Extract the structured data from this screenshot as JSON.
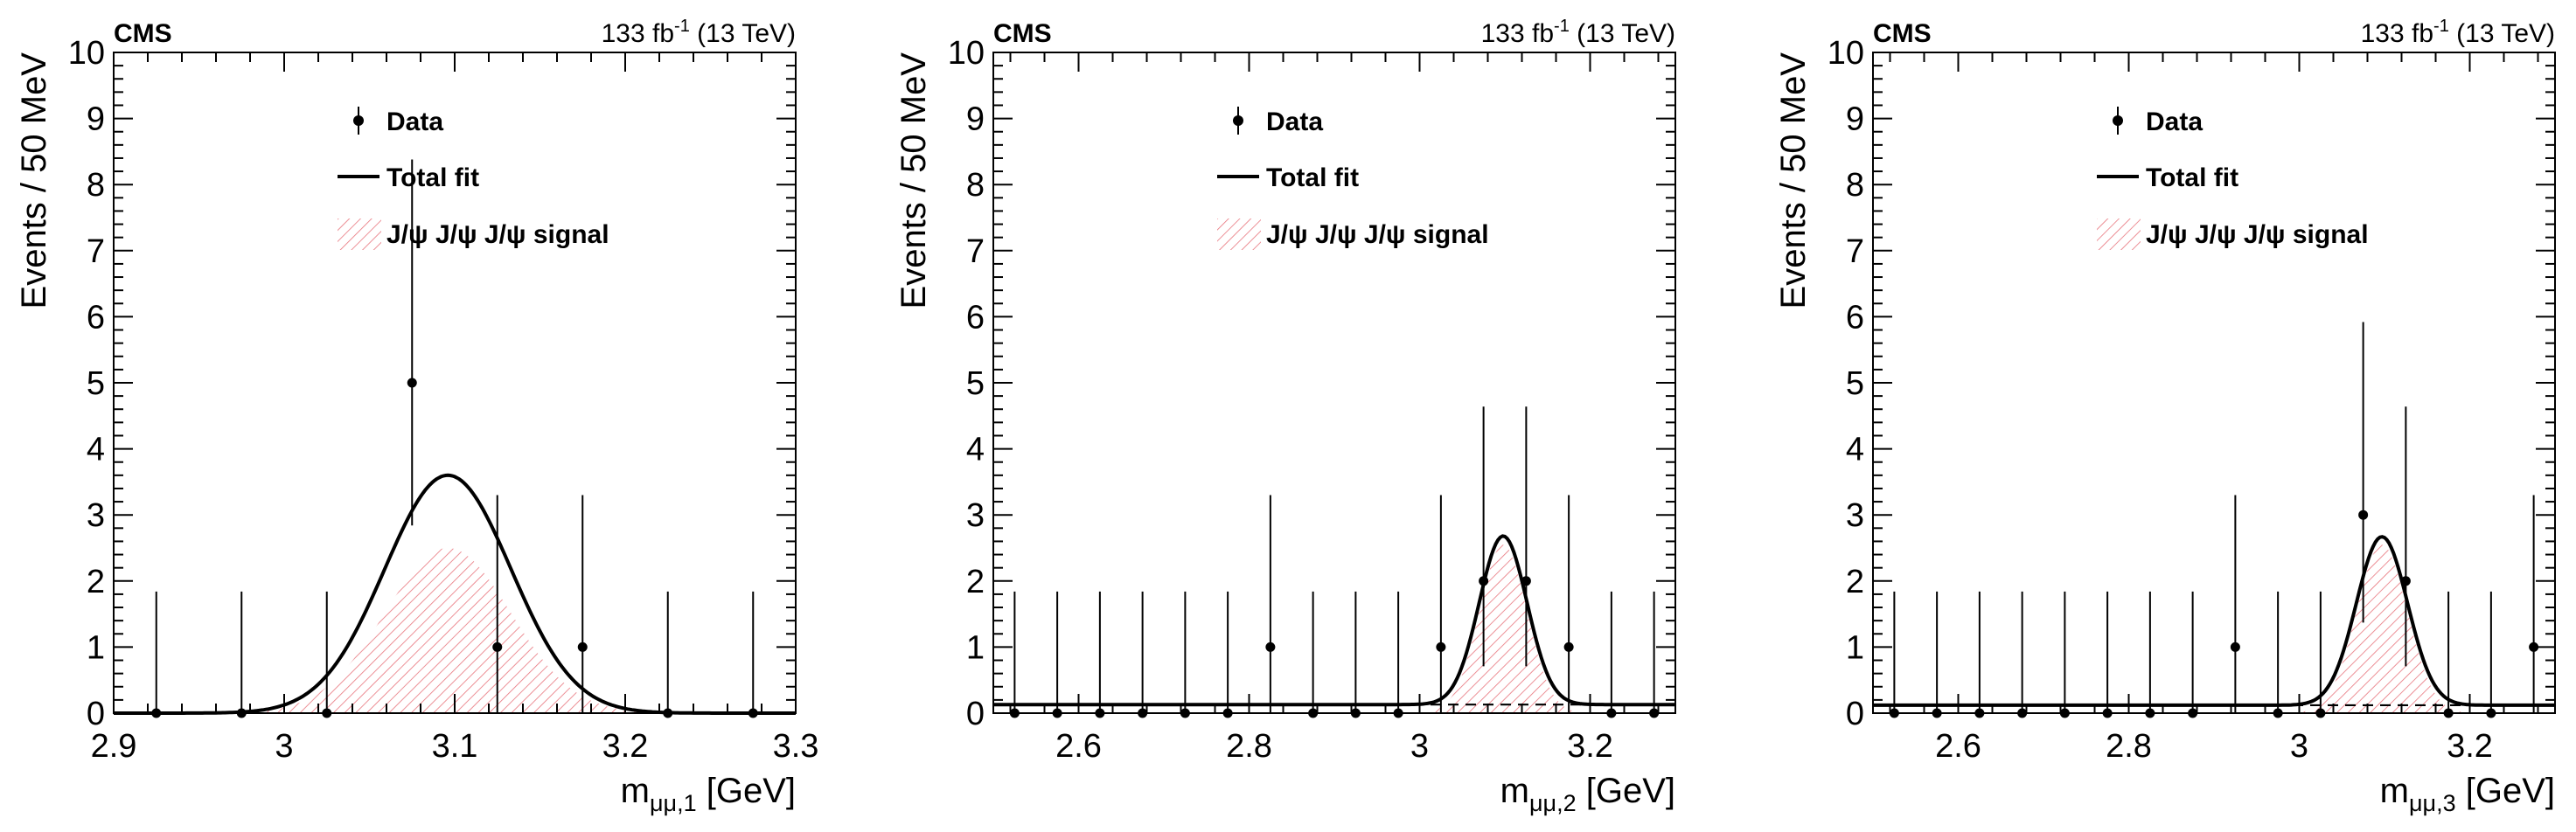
{
  "chart_data": [
    {
      "type": "scatter",
      "experiment": "CMS",
      "luminosity": {
        "value": "133 fb",
        "exponent": "-1",
        "energy": "(13 TeV)"
      },
      "xlabel": {
        "main": "m",
        "subscript": "μμ,1",
        "unit": "[GeV]"
      },
      "ylabel": "Events / 50 MeV",
      "xlim": [
        2.9,
        3.3
      ],
      "ylim": [
        0,
        10
      ],
      "xticks": [
        2.9,
        3,
        3.1,
        3.2,
        3.3
      ],
      "xtick_labels": [
        "2.9",
        "3",
        "3.1",
        "3.2",
        "3.3"
      ],
      "yticks": [
        0,
        1,
        2,
        3,
        4,
        5,
        6,
        7,
        8,
        9,
        10
      ],
      "ytick_labels": [
        "0",
        "1",
        "2",
        "3",
        "4",
        "5",
        "6",
        "7",
        "8",
        "9",
        "10"
      ],
      "legend": {
        "position": "top-center",
        "data": "Data",
        "fit": "Total fit",
        "signal": "J/ψ J/ψ J/ψ signal"
      },
      "data_points": [
        {
          "x": 2.925,
          "y": 0,
          "err_up": 1.84,
          "err_down": 0
        },
        {
          "x": 2.975,
          "y": 0,
          "err_up": 1.84,
          "err_down": 0
        },
        {
          "x": 3.025,
          "y": 0,
          "err_up": 1.84,
          "err_down": 0
        },
        {
          "x": 3.075,
          "y": 5,
          "err_up": 3.38,
          "err_down": 2.16
        },
        {
          "x": 3.125,
          "y": 1,
          "err_up": 2.3,
          "err_down": 1
        },
        {
          "x": 3.175,
          "y": 1,
          "err_up": 2.3,
          "err_down": 1
        },
        {
          "x": 3.225,
          "y": 0,
          "err_up": 1.84,
          "err_down": 0
        },
        {
          "x": 3.275,
          "y": 0,
          "err_up": 1.84,
          "err_down": 0
        }
      ],
      "total_fit": {
        "model": "gaussian",
        "mean": 3.096,
        "sigma": 0.037,
        "amplitude": 3.6,
        "background": 0
      },
      "signal": {
        "model": "gaussian",
        "mean": 3.096,
        "sigma": 0.037,
        "amplitude": 2.5
      }
    },
    {
      "type": "scatter",
      "experiment": "CMS",
      "luminosity": {
        "value": "133 fb",
        "exponent": "-1",
        "energy": "(13 TeV)"
      },
      "xlabel": {
        "main": "m",
        "subscript": "μμ,2",
        "unit": "[GeV]"
      },
      "ylabel": "Events / 50 MeV",
      "xlim": [
        2.5,
        3.3
      ],
      "ylim": [
        0,
        10
      ],
      "xticks": [
        2.6,
        2.8,
        3,
        3.2
      ],
      "xtick_labels": [
        "2.6",
        "2.8",
        "3",
        "3.2"
      ],
      "yticks": [
        0,
        1,
        2,
        3,
        4,
        5,
        6,
        7,
        8,
        9,
        10
      ],
      "ytick_labels": [
        "0",
        "1",
        "2",
        "3",
        "4",
        "5",
        "6",
        "7",
        "8",
        "9",
        "10"
      ],
      "legend": {
        "position": "top-center",
        "data": "Data",
        "fit": "Total fit",
        "signal": "J/ψ J/ψ J/ψ signal"
      },
      "data_points": [
        {
          "x": 2.525,
          "y": 0,
          "err_up": 1.84,
          "err_down": 0
        },
        {
          "x": 2.575,
          "y": 0,
          "err_up": 1.84,
          "err_down": 0
        },
        {
          "x": 2.625,
          "y": 0,
          "err_up": 1.84,
          "err_down": 0
        },
        {
          "x": 2.675,
          "y": 0,
          "err_up": 1.84,
          "err_down": 0
        },
        {
          "x": 2.725,
          "y": 0,
          "err_up": 1.84,
          "err_down": 0
        },
        {
          "x": 2.775,
          "y": 0,
          "err_up": 1.84,
          "err_down": 0
        },
        {
          "x": 2.825,
          "y": 1,
          "err_up": 2.3,
          "err_down": 1
        },
        {
          "x": 2.875,
          "y": 0,
          "err_up": 1.84,
          "err_down": 0
        },
        {
          "x": 2.925,
          "y": 0,
          "err_up": 1.84,
          "err_down": 0
        },
        {
          "x": 2.975,
          "y": 0,
          "err_up": 1.84,
          "err_down": 0
        },
        {
          "x": 3.025,
          "y": 1,
          "err_up": 2.3,
          "err_down": 1
        },
        {
          "x": 3.075,
          "y": 2,
          "err_up": 2.64,
          "err_down": 1.29
        },
        {
          "x": 3.125,
          "y": 2,
          "err_up": 2.64,
          "err_down": 1.29
        },
        {
          "x": 3.175,
          "y": 1,
          "err_up": 2.3,
          "err_down": 1
        },
        {
          "x": 3.225,
          "y": 0,
          "err_up": 1.84,
          "err_down": 0
        },
        {
          "x": 3.275,
          "y": 0,
          "err_up": 1.84,
          "err_down": 0
        }
      ],
      "total_fit": {
        "model": "gaussian",
        "mean": 3.098,
        "sigma": 0.028,
        "amplitude": 2.55,
        "background": 0.13
      },
      "signal": {
        "model": "gaussian",
        "mean": 3.098,
        "sigma": 0.028,
        "amplitude": 2.55
      },
      "background_fit": {
        "style": "dashed",
        "level": 0.13
      }
    },
    {
      "type": "scatter",
      "experiment": "CMS",
      "luminosity": {
        "value": "133 fb",
        "exponent": "-1",
        "energy": "(13 TeV)"
      },
      "xlabel": {
        "main": "m",
        "subscript": "μμ,3",
        "unit": "[GeV]"
      },
      "ylabel": "Events / 50 MeV",
      "xlim": [
        2.5,
        3.3
      ],
      "ylim": [
        0,
        10
      ],
      "xticks": [
        2.6,
        2.8,
        3,
        3.2
      ],
      "xtick_labels": [
        "2.6",
        "2.8",
        "3",
        "3.2"
      ],
      "yticks": [
        0,
        1,
        2,
        3,
        4,
        5,
        6,
        7,
        8,
        9,
        10
      ],
      "ytick_labels": [
        "0",
        "1",
        "2",
        "3",
        "4",
        "5",
        "6",
        "7",
        "8",
        "9",
        "10"
      ],
      "legend": {
        "position": "top-center",
        "data": "Data",
        "fit": "Total fit",
        "signal": "J/ψ J/ψ J/ψ signal"
      },
      "data_points": [
        {
          "x": 2.525,
          "y": 0,
          "err_up": 1.84,
          "err_down": 0
        },
        {
          "x": 2.575,
          "y": 0,
          "err_up": 1.84,
          "err_down": 0
        },
        {
          "x": 2.625,
          "y": 0,
          "err_up": 1.84,
          "err_down": 0
        },
        {
          "x": 2.675,
          "y": 0,
          "err_up": 1.84,
          "err_down": 0
        },
        {
          "x": 2.725,
          "y": 0,
          "err_up": 1.84,
          "err_down": 0
        },
        {
          "x": 2.775,
          "y": 0,
          "err_up": 1.84,
          "err_down": 0
        },
        {
          "x": 2.825,
          "y": 0,
          "err_up": 1.84,
          "err_down": 0
        },
        {
          "x": 2.875,
          "y": 0,
          "err_up": 1.84,
          "err_down": 0
        },
        {
          "x": 2.925,
          "y": 1,
          "err_up": 2.3,
          "err_down": 1
        },
        {
          "x": 2.975,
          "y": 0,
          "err_up": 1.84,
          "err_down": 0
        },
        {
          "x": 3.025,
          "y": 0,
          "err_up": 1.84,
          "err_down": 0
        },
        {
          "x": 3.075,
          "y": 3,
          "err_up": 2.92,
          "err_down": 1.63
        },
        {
          "x": 3.125,
          "y": 2,
          "err_up": 2.64,
          "err_down": 1.29
        },
        {
          "x": 3.175,
          "y": 0,
          "err_up": 1.84,
          "err_down": 0
        },
        {
          "x": 3.225,
          "y": 0,
          "err_up": 1.84,
          "err_down": 0
        },
        {
          "x": 3.275,
          "y": 1,
          "err_up": 2.3,
          "err_down": 1
        }
      ],
      "total_fit": {
        "model": "gaussian",
        "mean": 3.097,
        "sigma": 0.03,
        "amplitude": 2.55,
        "background": 0.12
      },
      "signal": {
        "model": "gaussian",
        "mean": 3.097,
        "sigma": 0.03,
        "amplitude": 2.55
      },
      "background_fit": {
        "style": "dashed",
        "level": 0.12
      }
    }
  ],
  "colors": {
    "axis": "#000000",
    "data": "#000000",
    "fit": "#000000",
    "signal_hatch": "#e8747c"
  }
}
